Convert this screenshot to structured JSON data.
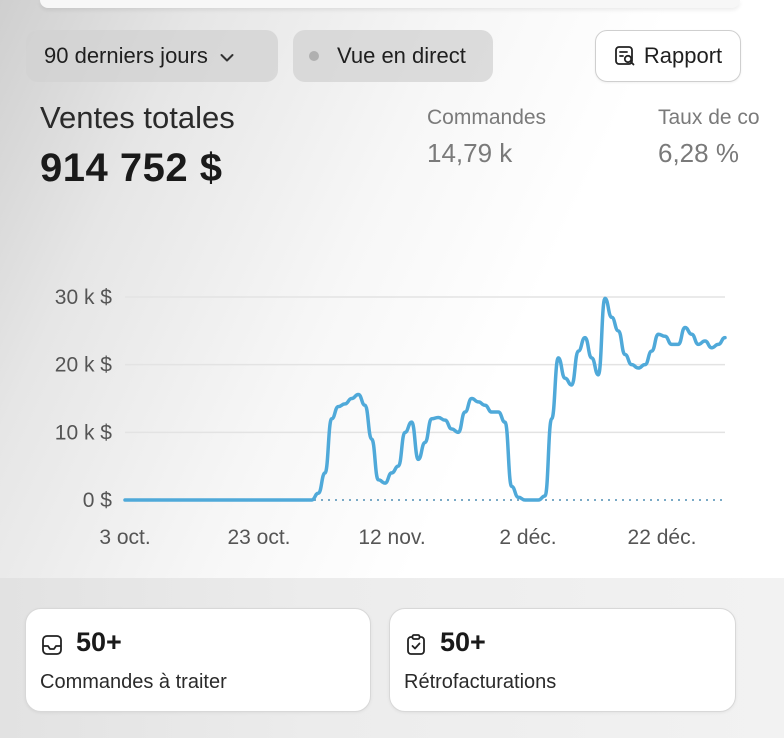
{
  "toolbar": {
    "date_range": "90 derniers jours",
    "live_view": "Vue en direct",
    "report": "Rapport"
  },
  "summary": {
    "total_sales_label": "Ventes totales",
    "total_sales_value": "914 752 $",
    "orders_label": "Commandes",
    "orders_value": "14,79 k",
    "conversion_label": "Taux de co",
    "conversion_value": "6,28 %"
  },
  "chart_data": {
    "type": "line",
    "xlabel": "",
    "ylabel": "",
    "x_tick_labels": [
      "3 oct.",
      "23 oct.",
      "12 nov.",
      "2 déc.",
      "22 déc."
    ],
    "y_tick_labels": [
      "30 k $",
      "20 k $",
      "10 k $",
      "0 $"
    ],
    "ylim": [
      0,
      30000
    ],
    "grid": true,
    "line_color": "#4fa9d9",
    "baseline_style": "dotted",
    "series": [
      {
        "x_days_from_start": [
          0,
          10,
          20,
          28,
          29,
          30,
          31,
          32,
          33,
          34,
          35,
          36,
          37,
          38,
          39,
          40,
          41,
          42,
          43,
          44,
          45,
          46,
          47,
          48,
          49,
          50,
          51,
          52,
          53,
          54,
          55,
          56,
          57,
          58,
          59,
          60,
          61,
          62,
          63,
          64,
          65,
          66,
          67,
          68,
          69,
          70,
          71,
          72,
          73,
          74,
          75,
          76,
          77,
          78,
          79,
          80,
          81,
          82,
          83,
          84,
          85,
          86,
          87,
          88,
          89,
          90
        ],
        "values": [
          0,
          0,
          0,
          0,
          1000,
          4000,
          12000,
          13800,
          14200,
          15000,
          15600,
          14000,
          9000,
          3000,
          2500,
          4000,
          5000,
          10000,
          11500,
          6000,
          8500,
          12000,
          12200,
          11800,
          10500,
          10000,
          13000,
          15000,
          14500,
          14000,
          13000,
          13000,
          11500,
          2000,
          400,
          0,
          0,
          0,
          600,
          12000,
          21000,
          18000,
          17000,
          22000,
          24000,
          21000,
          18500,
          29800,
          27000,
          25000,
          21500,
          20000,
          19500,
          20000,
          22000,
          24500,
          24200,
          23000,
          23000,
          25500,
          24500,
          23000,
          23500,
          22500,
          23000,
          24000
        ]
      }
    ]
  },
  "cards": [
    {
      "count": "50+",
      "label": "Commandes à traiter",
      "icon": "inbox-icon"
    },
    {
      "count": "50+",
      "label": "Rétrofacturations",
      "icon": "clipboard-check-icon"
    }
  ]
}
